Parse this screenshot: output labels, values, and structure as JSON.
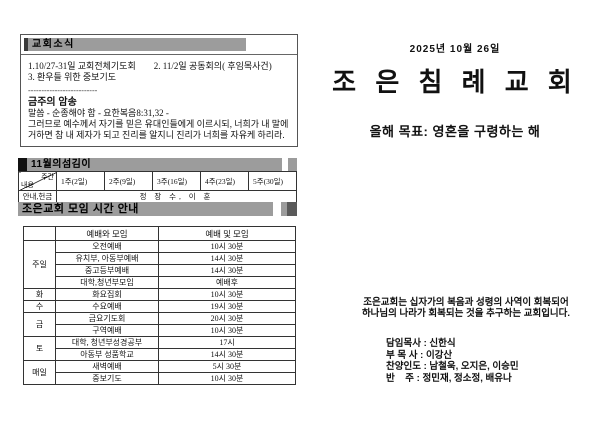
{
  "colors": {
    "bar_gray": "#9c9c9c",
    "bar_black": "#111111",
    "border": "#333333"
  },
  "news_box": {
    "header": "교회소식",
    "items": [
      "1.10/27-31일 교회전체기도회",
      "2. 11/2일 공동회의( 후임목사건)",
      "3. 환우들 위한 중보기도"
    ],
    "divider": "--------------------------",
    "memory_header": "금주의 암송",
    "verse_lines": [
      "말씀 - 순종해야 함 - 요한복음8:31,32 -",
      "그러므로 예수께서 자기를 믿은 유대인들에게 이르시되, 너희가 내 말에",
      "거하면 참 내 제자가 되고 진리를 알지니 진리가 너희를 자유케 하리라."
    ]
  },
  "servers_table": {
    "header": "11월의섬김이",
    "corner_top": "주간",
    "corner_bottom": "내용",
    "weeks": [
      "1주(2일)",
      "2주(9일)",
      "3주(16일)",
      "4주(23일)",
      "5주(30일)"
    ],
    "row_label": "안내,헌금",
    "row_value": "정 장 수, 이 훈"
  },
  "schedule": {
    "header": "조은교회 모임 시간 안내",
    "col_meeting": "예배와 모임",
    "col_time": "예배 및 모임",
    "day_groups": [
      {
        "day": "주일",
        "rows": [
          [
            "오전예배",
            "10시 30분"
          ],
          [
            "유치부, 아동부예배",
            "14시 30분"
          ],
          [
            "중고등부예배",
            "14시 30분"
          ],
          [
            "대학,청년부모임",
            "예배후"
          ]
        ]
      },
      {
        "day": "화",
        "rows": [
          [
            "화요집회",
            "10시 30분"
          ]
        ]
      },
      {
        "day": "수",
        "rows": [
          [
            "수요예배",
            "19시 30분"
          ]
        ]
      },
      {
        "day": "금",
        "rows": [
          [
            "금요기도회",
            "20시 30분"
          ],
          [
            "구역예배",
            "10시 30분"
          ]
        ]
      },
      {
        "day": "토",
        "rows": [
          [
            "대학, 청년부성경공부",
            "17시"
          ],
          [
            "아동부 성품학교",
            "14시 30분"
          ]
        ]
      },
      {
        "day": "매일",
        "rows": [
          [
            "새벽예배",
            "5시 30분"
          ],
          [
            "중보기도",
            "10시 30분"
          ]
        ]
      }
    ]
  },
  "masthead": {
    "date": "2025년 10월 26일",
    "title": "조 은 침 례 교 회",
    "goal": "올해 목표: 영혼을 구령하는 해"
  },
  "mission_lines": [
    "조은교회는 십자가의 복음과 성령의 사역이 회복되어",
    "하나님의 나라가 회복되는 것을 추구하는 교회입니다."
  ],
  "staff_lines": [
    "담임목사 : 신한식",
    "부 목 사 : 이강산",
    "찬양인도 : 남철욱, 오지은, 이승민",
    "반    주 : 정민재, 정소정, 배유나"
  ]
}
